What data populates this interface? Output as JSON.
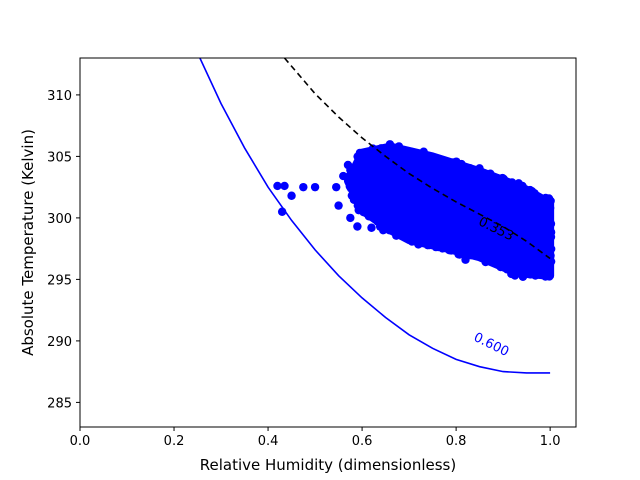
{
  "chart_data": {
    "type": "scatter",
    "xlabel": "Relative Humidity (dimensionless)",
    "ylabel": "Absolute Temperature (Kelvin)",
    "xlim": [
      0.0,
      1.055
    ],
    "ylim": [
      283.0,
      313.0
    ],
    "x_ticks": [
      "0.0",
      "0.2",
      "0.4",
      "0.6",
      "0.8",
      "1.0"
    ],
    "x_tick_values": [
      0.0,
      0.2,
      0.4,
      0.6,
      0.8,
      1.0
    ],
    "y_ticks": [
      "285",
      "290",
      "295",
      "300",
      "305",
      "310"
    ],
    "y_tick_values": [
      285,
      290,
      295,
      300,
      305,
      310
    ],
    "grid": false,
    "colors": {
      "points": "#0000ff",
      "contour_low": "#0000ff",
      "contour_high": "#000000"
    },
    "outlier_points": [
      {
        "x": 0.42,
        "y": 302.6
      },
      {
        "x": 0.435,
        "y": 302.6
      },
      {
        "x": 0.45,
        "y": 301.8
      },
      {
        "x": 0.43,
        "y": 300.5
      },
      {
        "x": 0.475,
        "y": 302.5
      },
      {
        "x": 0.5,
        "y": 302.5
      },
      {
        "x": 0.545,
        "y": 302.5
      },
      {
        "x": 0.55,
        "y": 301.0
      },
      {
        "x": 0.575,
        "y": 300.0
      },
      {
        "x": 0.59,
        "y": 299.3
      },
      {
        "x": 0.62,
        "y": 299.2
      },
      {
        "x": 0.645,
        "y": 299.0
      },
      {
        "x": 0.56,
        "y": 303.4
      },
      {
        "x": 0.57,
        "y": 304.3
      },
      {
        "x": 0.6,
        "y": 305.2
      },
      {
        "x": 0.82,
        "y": 296.6
      },
      {
        "x": 0.99,
        "y": 295.4
      },
      {
        "x": 1.0,
        "y": 300.8
      }
    ],
    "cluster_polygon": [
      {
        "x": 0.57,
        "y": 303.0
      },
      {
        "x": 0.6,
        "y": 305.3
      },
      {
        "x": 0.66,
        "y": 305.8
      },
      {
        "x": 0.75,
        "y": 305.0
      },
      {
        "x": 0.85,
        "y": 303.8
      },
      {
        "x": 0.94,
        "y": 302.5
      },
      {
        "x": 1.0,
        "y": 301.2
      },
      {
        "x": 1.0,
        "y": 295.3
      },
      {
        "x": 0.93,
        "y": 295.5
      },
      {
        "x": 0.85,
        "y": 296.8
      },
      {
        "x": 0.77,
        "y": 297.6
      },
      {
        "x": 0.7,
        "y": 298.2
      },
      {
        "x": 0.66,
        "y": 299.0
      },
      {
        "x": 0.6,
        "y": 300.6
      }
    ],
    "contours": [
      {
        "label": "0.600",
        "style": "solid",
        "color": "#0000ff",
        "points": [
          [
            0.255,
            313.0
          ],
          [
            0.3,
            309.3
          ],
          [
            0.35,
            305.7
          ],
          [
            0.4,
            302.5
          ],
          [
            0.45,
            299.8
          ],
          [
            0.5,
            297.4
          ],
          [
            0.55,
            295.3
          ],
          [
            0.6,
            293.5
          ],
          [
            0.65,
            291.9
          ],
          [
            0.7,
            290.5
          ],
          [
            0.75,
            289.4
          ],
          [
            0.8,
            288.5
          ],
          [
            0.85,
            287.9
          ],
          [
            0.9,
            287.5
          ],
          [
            0.95,
            287.4
          ],
          [
            1.0,
            287.4
          ]
        ],
        "label_at": {
          "x": 0.875,
          "y": 289.7
        }
      },
      {
        "label": "0.353",
        "style": "dashed",
        "color": "#000000",
        "points": [
          [
            0.435,
            313.0
          ],
          [
            0.5,
            310.1
          ],
          [
            0.55,
            308.2
          ],
          [
            0.6,
            306.5
          ],
          [
            0.65,
            305.0
          ],
          [
            0.7,
            303.6
          ],
          [
            0.75,
            302.4
          ],
          [
            0.8,
            301.3
          ],
          [
            0.85,
            300.3
          ],
          [
            0.9,
            299.3
          ],
          [
            0.95,
            298.1
          ],
          [
            1.0,
            296.7
          ]
        ],
        "label_at": {
          "x": 0.885,
          "y": 299.1
        }
      }
    ]
  }
}
